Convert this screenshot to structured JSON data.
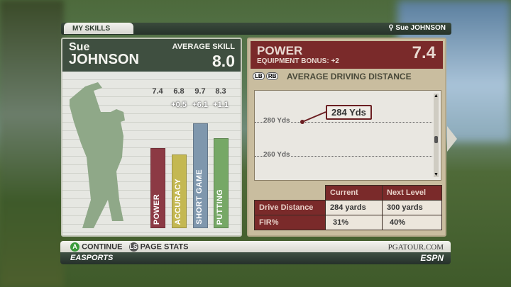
{
  "header": {
    "tab": "MY SKILLS",
    "user": "Sue JOHNSON"
  },
  "player": {
    "first": "Sue",
    "last": "JOHNSON",
    "avg_label": "AVERAGE SKILL",
    "avg_value": "8.0"
  },
  "skills": [
    {
      "label": "POWER",
      "value": "7.4",
      "delta": "",
      "level": 7.4,
      "color": "#8c3a44"
    },
    {
      "label": "ACCURACY",
      "value": "6.8",
      "delta": "+0.5",
      "level": 6.8,
      "color": "#c4b852"
    },
    {
      "label": "SHORT GAME",
      "value": "9.7",
      "delta": "+6.1",
      "level": 9.7,
      "color": "#7f97ad"
    },
    {
      "label": "PUTTING",
      "value": "8.3",
      "delta": "+1.1",
      "level": 8.3,
      "color": "#76a866"
    }
  ],
  "detail": {
    "title": "POWER",
    "bonus": "EQUIPMENT BONUS: +2",
    "value": "7.4",
    "lb": "LB",
    "rb": "RB",
    "subtitle": "AVERAGE DRIVING DISTANCE",
    "chart": {
      "gridlines": [
        "280 Yds",
        "260 Yds"
      ],
      "callout": "284 Yds"
    },
    "table": {
      "headers": [
        "",
        "Current",
        "Next Level"
      ],
      "rows": [
        [
          "Drive Distance",
          "284 yards",
          "300 yards"
        ],
        [
          "FIR%",
          "31%",
          "40%"
        ]
      ]
    }
  },
  "footer": {
    "a": "A",
    "continue": "CONTINUE",
    "ls": "LS",
    "page_stats": "PAGE STATS",
    "pga": "PGATOUR.COM",
    "ea": "EASPORTS",
    "espn": "ESPN"
  }
}
